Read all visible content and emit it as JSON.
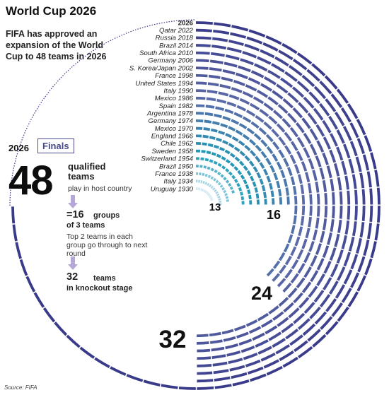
{
  "title": "World Cup 2026",
  "subtitle": "FIFA has approved an expansion of the World Cup to 48 teams in 2026",
  "panel": {
    "year": "2026",
    "badge": "Finals",
    "teams_number": "48",
    "teams_label": "qualified teams",
    "teams_sub": "play in host country",
    "groups_number": "=16",
    "groups_label": "groups",
    "groups_label2": "of 3 teams",
    "groups_sub": "Top 2 teams in each group go through to next round",
    "knockout_number": "32",
    "knockout_label": "teams",
    "knockout_label2": "in knockout stage"
  },
  "source": "Source: FIFA",
  "colors": {
    "ring_new": "#3a3a8a",
    "ring_old": "#cfe6f2",
    "ring_mid": "#1f9bb8",
    "ring_recent": "#5b6aa8",
    "accent": "#4a4a8c"
  },
  "chart_data": {
    "type": "radial-bar",
    "title": "World Cup 2026",
    "categories": [
      "Uruguay 1930",
      "Italy 1934",
      "France 1938",
      "Brazil 1950",
      "Switzerland 1954",
      "Sweden 1958",
      "Chile 1962",
      "England 1966",
      "Mexico 1970",
      "Germany 1974",
      "Argentina 1978",
      "Spain 1982",
      "Mexico 1986",
      "Italy 1990",
      "United States 1994",
      "France 1998",
      "S. Korea/Japan 2002",
      "Germany 2006",
      "South Africa 2010",
      "Brazil 2014",
      "Russia 2018",
      "Qatar 2022",
      "2026"
    ],
    "series": [
      {
        "values": [
          13,
          16,
          15,
          13,
          16,
          16,
          16,
          16,
          16,
          16,
          16,
          24,
          24,
          24,
          24,
          32,
          32,
          32,
          32,
          32,
          32,
          32,
          48
        ]
      }
    ],
    "annotations": [
      "13",
      "16",
      "24",
      "32"
    ]
  }
}
